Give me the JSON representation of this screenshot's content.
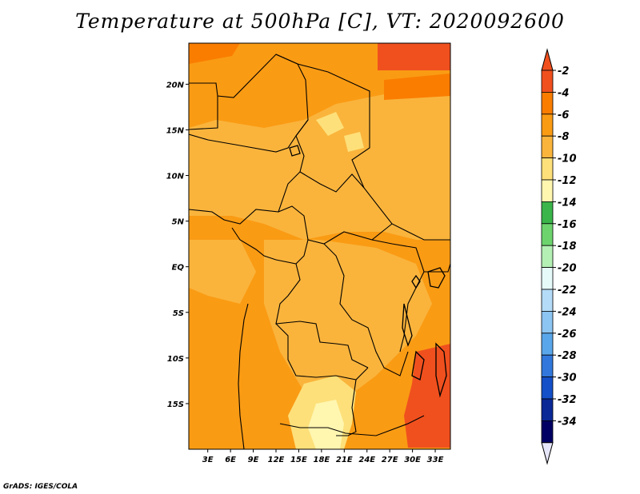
{
  "chart_data": {
    "type": "heatmap",
    "title": "Temperature at 500hPa [C], VT: 2020092600",
    "x_ticks": [
      "3E",
      "6E",
      "9E",
      "12E",
      "15E",
      "18E",
      "21E",
      "24E",
      "27E",
      "30E",
      "33E"
    ],
    "y_ticks": [
      "20N",
      "15N",
      "10N",
      "5N",
      "EQ",
      "5S",
      "10S",
      "15S"
    ],
    "xlim": [
      0.5,
      35
    ],
    "ylim": [
      -20,
      24.5
    ],
    "colorbar": {
      "labels": [
        "-2",
        "-4",
        "-6",
        "-8",
        "-10",
        "-12",
        "-14",
        "-16",
        "-18",
        "-20",
        "-22",
        "-24",
        "-26",
        "-28",
        "-30",
        "-32",
        "-34"
      ],
      "colors": [
        "#f0501e",
        "#fa7d00",
        "#fa9b14",
        "#fab43c",
        "#fde07a",
        "#fff6b0",
        "#3ab54a",
        "#6dd46d",
        "#b4f0b4",
        "#e6fafa",
        "#b4dcf8",
        "#8cc4f2",
        "#5aa6ea",
        "#3278dc",
        "#1450c8",
        "#0a2896",
        "#000064"
      ],
      "over_color": "#f0501e",
      "under_color": "#e6e6fa"
    }
  },
  "credit": "GrADS: IGES/COLA"
}
